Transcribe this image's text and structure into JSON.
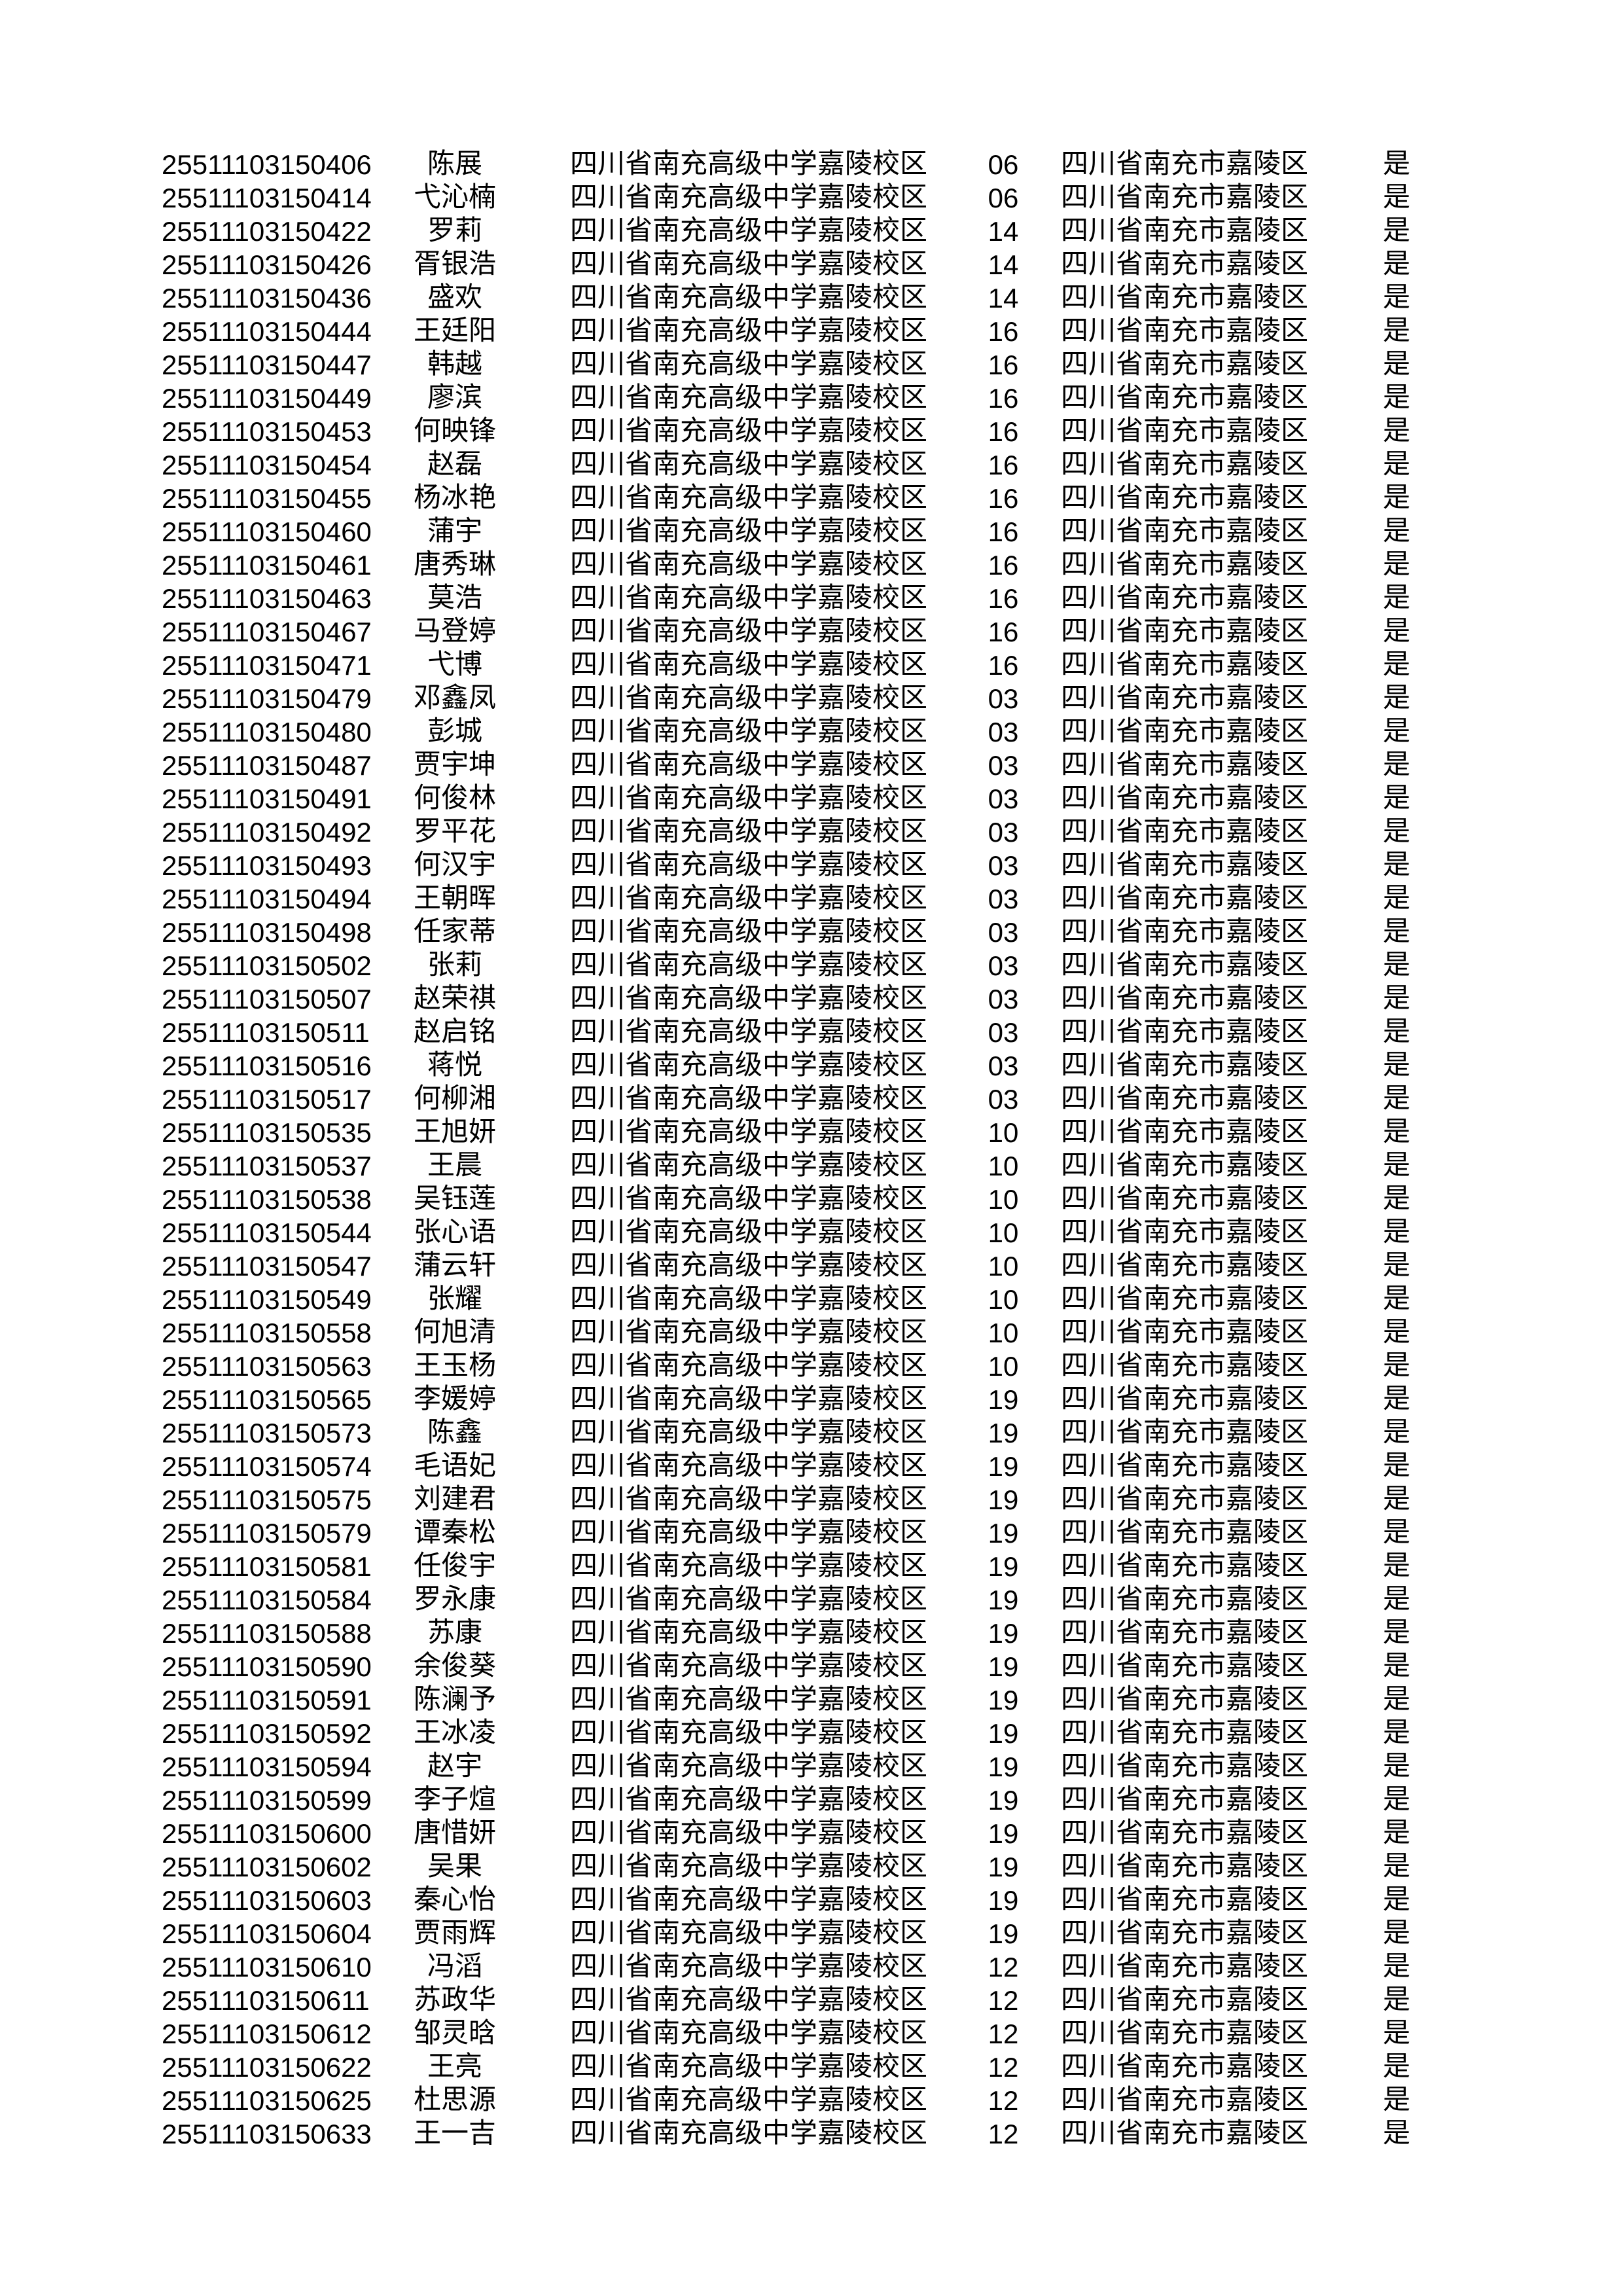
{
  "page": {
    "background_color": "#ffffff",
    "text_color": "#000000"
  },
  "constants": {
    "school": "四川省南充高级中学嘉陵校区",
    "district": "四川省南充市嘉陵区",
    "confirmed_flag": "是"
  },
  "rows": [
    {
      "id": "25511103150406",
      "name": "陈展",
      "class": "06"
    },
    {
      "id": "25511103150414",
      "name": "弋沁楠",
      "class": "06"
    },
    {
      "id": "25511103150422",
      "name": "罗莉",
      "class": "14"
    },
    {
      "id": "25511103150426",
      "name": "胥银浩",
      "class": "14"
    },
    {
      "id": "25511103150436",
      "name": "盛欢",
      "class": "14"
    },
    {
      "id": "25511103150444",
      "name": "王廷阳",
      "class": "16"
    },
    {
      "id": "25511103150447",
      "name": "韩越",
      "class": "16"
    },
    {
      "id": "25511103150449",
      "name": "廖滨",
      "class": "16"
    },
    {
      "id": "25511103150453",
      "name": "何映锋",
      "class": "16"
    },
    {
      "id": "25511103150454",
      "name": "赵磊",
      "class": "16"
    },
    {
      "id": "25511103150455",
      "name": "杨冰艳",
      "class": "16"
    },
    {
      "id": "25511103150460",
      "name": "蒲宇",
      "class": "16"
    },
    {
      "id": "25511103150461",
      "name": "唐秀琳",
      "class": "16"
    },
    {
      "id": "25511103150463",
      "name": "莫浩",
      "class": "16"
    },
    {
      "id": "25511103150467",
      "name": "马登婷",
      "class": "16"
    },
    {
      "id": "25511103150471",
      "name": "弋博",
      "class": "16"
    },
    {
      "id": "25511103150479",
      "name": "邓鑫凤",
      "class": "03"
    },
    {
      "id": "25511103150480",
      "name": "彭城",
      "class": "03"
    },
    {
      "id": "25511103150487",
      "name": "贾宇坤",
      "class": "03"
    },
    {
      "id": "25511103150491",
      "name": "何俊林",
      "class": "03"
    },
    {
      "id": "25511103150492",
      "name": "罗平花",
      "class": "03"
    },
    {
      "id": "25511103150493",
      "name": "何汉宇",
      "class": "03"
    },
    {
      "id": "25511103150494",
      "name": "王朝晖",
      "class": "03"
    },
    {
      "id": "25511103150498",
      "name": "任家蒂",
      "class": "03"
    },
    {
      "id": "25511103150502",
      "name": "张莉",
      "class": "03"
    },
    {
      "id": "25511103150507",
      "name": "赵荣祺",
      "class": "03"
    },
    {
      "id": "25511103150511",
      "name": "赵启铭",
      "class": "03"
    },
    {
      "id": "25511103150516",
      "name": "蒋悦",
      "class": "03"
    },
    {
      "id": "25511103150517",
      "name": "何柳湘",
      "class": "03"
    },
    {
      "id": "25511103150535",
      "name": "王旭妍",
      "class": "10"
    },
    {
      "id": "25511103150537",
      "name": "王晨",
      "class": "10"
    },
    {
      "id": "25511103150538",
      "name": "吴钰莲",
      "class": "10"
    },
    {
      "id": "25511103150544",
      "name": "张心语",
      "class": "10"
    },
    {
      "id": "25511103150547",
      "name": "蒲云轩",
      "class": "10"
    },
    {
      "id": "25511103150549",
      "name": "张耀",
      "class": "10"
    },
    {
      "id": "25511103150558",
      "name": "何旭清",
      "class": "10"
    },
    {
      "id": "25511103150563",
      "name": "王玉杨",
      "class": "10"
    },
    {
      "id": "25511103150565",
      "name": "李媛婷",
      "class": "19"
    },
    {
      "id": "25511103150573",
      "name": "陈鑫",
      "class": "19"
    },
    {
      "id": "25511103150574",
      "name": "毛语妃",
      "class": "19"
    },
    {
      "id": "25511103150575",
      "name": "刘建君",
      "class": "19"
    },
    {
      "id": "25511103150579",
      "name": "谭秦松",
      "class": "19"
    },
    {
      "id": "25511103150581",
      "name": "任俊宇",
      "class": "19"
    },
    {
      "id": "25511103150584",
      "name": "罗永康",
      "class": "19"
    },
    {
      "id": "25511103150588",
      "name": "苏康",
      "class": "19"
    },
    {
      "id": "25511103150590",
      "name": "余俊葵",
      "class": "19"
    },
    {
      "id": "25511103150591",
      "name": "陈澜予",
      "class": "19"
    },
    {
      "id": "25511103150592",
      "name": "王冰凌",
      "class": "19"
    },
    {
      "id": "25511103150594",
      "name": "赵宇",
      "class": "19"
    },
    {
      "id": "25511103150599",
      "name": "李子煊",
      "class": "19"
    },
    {
      "id": "25511103150600",
      "name": "唐惜妍",
      "class": "19"
    },
    {
      "id": "25511103150602",
      "name": "吴果",
      "class": "19"
    },
    {
      "id": "25511103150603",
      "name": "秦心怡",
      "class": "19"
    },
    {
      "id": "25511103150604",
      "name": "贾雨辉",
      "class": "19"
    },
    {
      "id": "25511103150610",
      "name": "冯滔",
      "class": "12"
    },
    {
      "id": "25511103150611",
      "name": "苏政华",
      "class": "12"
    },
    {
      "id": "25511103150612",
      "name": "邹灵晗",
      "class": "12"
    },
    {
      "id": "25511103150622",
      "name": "王亮",
      "class": "12"
    },
    {
      "id": "25511103150625",
      "name": "杜思源",
      "class": "12"
    },
    {
      "id": "25511103150633",
      "name": "王一吉",
      "class": "12"
    }
  ]
}
